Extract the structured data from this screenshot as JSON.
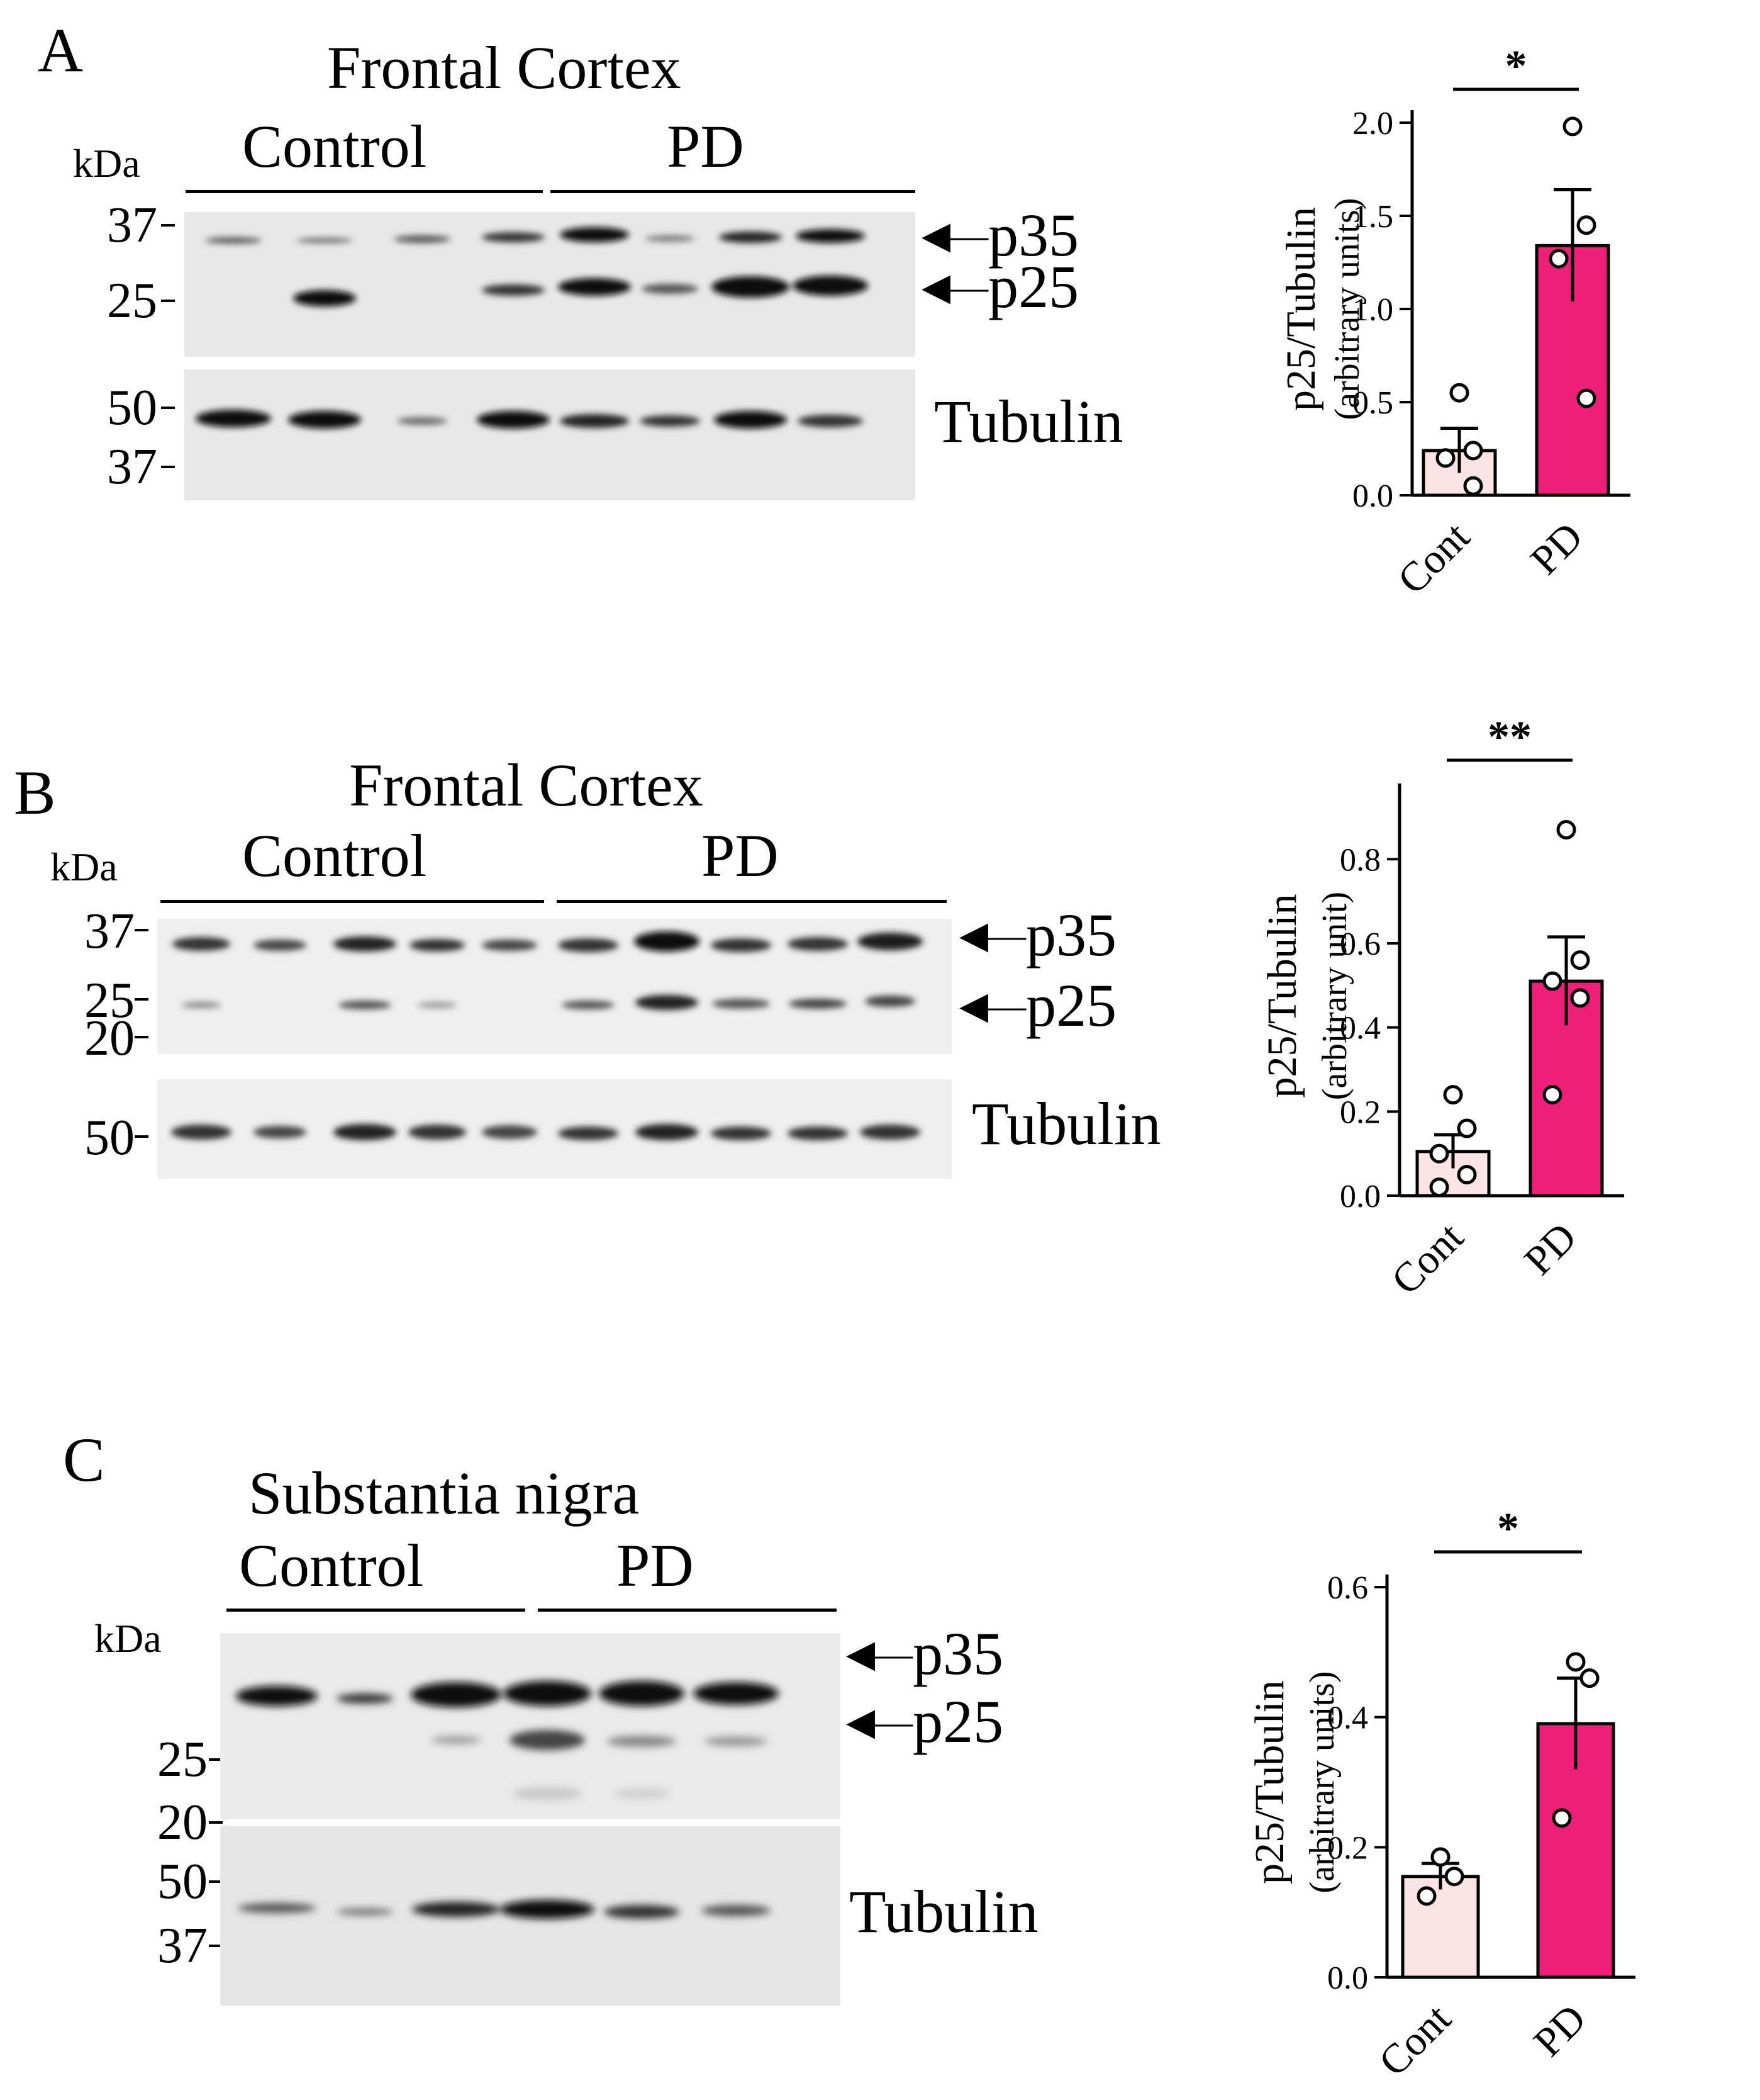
{
  "panels": [
    {
      "letter": "A",
      "blot": {
        "title": "Frontal Cortex",
        "unit_label": "kDa",
        "groups": [
          "Control",
          "PD"
        ],
        "top_markers": [
          "37",
          "25"
        ],
        "bottom_markers": [
          "50",
          "37"
        ],
        "bands": [
          "p35",
          "p25"
        ],
        "loading_label": "Tubulin"
      },
      "chart": {
        "type": "bar",
        "ylabel": "p25/Tubulin",
        "ylabel_sub": "(arbitrary units)",
        "categories": [
          "Cont",
          "PD"
        ],
        "yticks": [
          "0.0",
          "0.5",
          "1.0",
          "1.5",
          "2.0"
        ],
        "ylim": [
          0,
          2.0
        ],
        "significance": "*",
        "series": [
          {
            "name": "Cont",
            "mean": 0.24,
            "sem": 0.12,
            "points": [
              0.55,
              0.24,
              0.2,
              0.05
            ],
            "color": "#fbe3e6"
          },
          {
            "name": "PD",
            "mean": 1.34,
            "sem": 0.3,
            "points": [
              1.98,
              1.45,
              1.27,
              0.52
            ],
            "color": "#ee1f78"
          }
        ]
      }
    },
    {
      "letter": "B",
      "blot": {
        "title": "Frontal Cortex",
        "unit_label": "kDa",
        "groups": [
          "Control",
          "PD"
        ],
        "top_markers": [
          "37",
          "25",
          "20"
        ],
        "bottom_markers": [
          "50"
        ],
        "bands": [
          "p35",
          "p25"
        ],
        "loading_label": "Tubulin"
      },
      "chart": {
        "type": "bar",
        "ylabel": "p25/Tubulin",
        "ylabel_sub": "(arbitrary unit)",
        "categories": [
          "Cont",
          "PD"
        ],
        "yticks": [
          "0.0",
          "0.2",
          "0.4",
          "0.6",
          "0.8"
        ],
        "ylim": [
          0,
          0.95
        ],
        "significance": "**",
        "series": [
          {
            "name": "Cont",
            "mean": 0.105,
            "sem": 0.04,
            "points": [
              0.24,
              0.16,
              0.1,
              0.05,
              0.02
            ],
            "color": "#fbe3e6"
          },
          {
            "name": "PD",
            "mean": 0.51,
            "sem": 0.105,
            "points": [
              0.87,
              0.56,
              0.51,
              0.47,
              0.24
            ],
            "color": "#ee1f78"
          }
        ]
      }
    },
    {
      "letter": "C",
      "blot": {
        "title": "Substantia nigra",
        "unit_label": "kDa",
        "groups": [
          "Control",
          "PD"
        ],
        "top_markers": [
          "25",
          "20"
        ],
        "bottom_markers": [
          "50",
          "37"
        ],
        "bands": [
          "p35",
          "p25"
        ],
        "loading_label": "Tubulin"
      },
      "chart": {
        "type": "bar",
        "ylabel": "p25/Tubulin",
        "ylabel_sub": "(arbitrary units)",
        "categories": [
          "Cont",
          "PD"
        ],
        "yticks": [
          "0.0",
          "0.2",
          "0.4",
          "0.6"
        ],
        "ylim": [
          0,
          0.6
        ],
        "significance": "*",
        "series": [
          {
            "name": "Cont",
            "mean": 0.155,
            "sem": 0.02,
            "points": [
              0.185,
              0.155,
              0.125
            ],
            "color": "#fbe3e6"
          },
          {
            "name": "PD",
            "mean": 0.39,
            "sem": 0.07,
            "points": [
              0.485,
              0.46,
              0.245
            ],
            "color": "#ee1f78"
          }
        ]
      }
    }
  ]
}
